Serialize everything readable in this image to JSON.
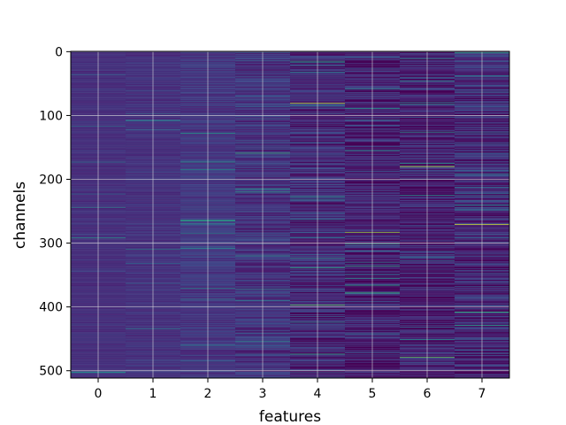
{
  "chart_data": {
    "type": "heatmap",
    "title": "",
    "xlabel": "features",
    "ylabel": "channels",
    "x_tick_labels": [
      "0",
      "1",
      "2",
      "3",
      "4",
      "5",
      "6",
      "7"
    ],
    "y_tick_labels": [
      "0",
      "100",
      "200",
      "300",
      "400",
      "500"
    ],
    "x_range": [
      -0.5,
      7.5
    ],
    "y_range": [
      -0.5,
      511.5
    ],
    "y_inverted": true,
    "n_features": 8,
    "n_channels": 512,
    "colormap": "viridis",
    "grid": true,
    "column_stats": [
      {
        "feature": 0,
        "mean": 0.17,
        "spread": 0.04
      },
      {
        "feature": 1,
        "mean": 0.18,
        "spread": 0.05
      },
      {
        "feature": 2,
        "mean": 0.2,
        "spread": 0.08
      },
      {
        "feature": 3,
        "mean": 0.18,
        "spread": 0.12
      },
      {
        "feature": 4,
        "mean": 0.14,
        "spread": 0.16
      },
      {
        "feature": 5,
        "mean": 0.1,
        "spread": 0.17
      },
      {
        "feature": 6,
        "mean": 0.1,
        "spread": 0.17
      },
      {
        "feature": 7,
        "mean": 0.13,
        "spread": 0.19
      }
    ],
    "bright_lines": [
      {
        "feature": 4,
        "channel": 81,
        "value": 0.92
      },
      {
        "feature": 4,
        "channel": 397,
        "value": 0.75
      },
      {
        "feature": 5,
        "channel": 283,
        "value": 0.85
      },
      {
        "feature": 5,
        "channel": 378,
        "value": 0.65
      },
      {
        "feature": 6,
        "channel": 180,
        "value": 0.9
      },
      {
        "feature": 6,
        "channel": 479,
        "value": 0.75
      },
      {
        "feature": 7,
        "channel": 271,
        "value": 0.95
      },
      {
        "feature": 7,
        "channel": 2,
        "value": 0.6
      },
      {
        "feature": 2,
        "channel": 265,
        "value": 0.6
      },
      {
        "feature": 3,
        "channel": 220,
        "value": 0.55
      }
    ],
    "colors": {
      "background": "#ffffff",
      "grid": "#dddddd",
      "axis": "#000000"
    }
  }
}
